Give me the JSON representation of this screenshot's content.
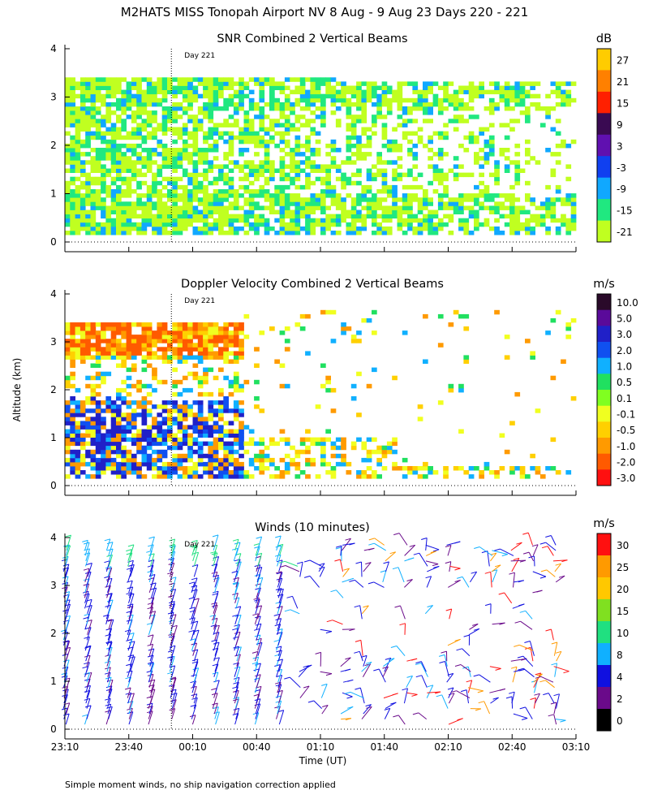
{
  "figure": {
    "title": "M2HATS MISS Tonopah Airport NV   8 Aug -  9 Aug 23 Days 220 - 221",
    "ylabel": "Altitude (km)",
    "xlabel": "Time (UT)",
    "footnote": "Simple moment winds, no ship navigation correction applied",
    "day_marker": "Day 221",
    "x_ticks": [
      "23:10",
      "23:40",
      "00:10",
      "00:40",
      "01:10",
      "01:40",
      "02:10",
      "02:40",
      "03:10"
    ],
    "y_ticks": [
      "0",
      "1",
      "2",
      "3",
      "4"
    ]
  },
  "chart_data": [
    {
      "type": "heatmap",
      "title": "SNR Combined 2 Vertical Beams",
      "unit": "dB",
      "x_range": [
        "23:10",
        "03:10"
      ],
      "ylim": [
        0,
        4
      ],
      "colorbar_labels": [
        "27",
        "21",
        "15",
        "9",
        "3",
        "-3",
        "-9",
        "-15",
        "-21"
      ],
      "colorbar_colors": [
        "#ffcc00",
        "#ff8000",
        "#ff2000",
        "#3a0a52",
        "#6010b0",
        "#1040f0",
        "#10a8ff",
        "#20e880",
        "#c0ff20"
      ],
      "day_marker_time": "00:00"
    },
    {
      "type": "heatmap",
      "title": "Doppler Velocity Combined 2 Vertical Beams",
      "unit": "m/s",
      "x_range": [
        "23:10",
        "03:10"
      ],
      "ylim": [
        0,
        4
      ],
      "colorbar_labels": [
        "10.0",
        "5.0",
        "3.0",
        "2.0",
        "1.0",
        "0.5",
        "0.1",
        "-0.1",
        "-0.5",
        "-1.0",
        "-2.0",
        "-3.0"
      ],
      "colorbar_colors": [
        "#2a0a2a",
        "#5a0a9a",
        "#2020c8",
        "#1050f0",
        "#10b0ff",
        "#20e060",
        "#80ff20",
        "#f0ff20",
        "#ffd000",
        "#ff9a00",
        "#ff5a00",
        "#ff1010"
      ],
      "day_marker_time": "00:00"
    },
    {
      "type": "scatter",
      "title": "Winds (10 minutes)",
      "unit": "m/s",
      "x_range": [
        "23:10",
        "03:10"
      ],
      "ylim": [
        0,
        4
      ],
      "colorbar_labels": [
        "30",
        "25",
        "20",
        "15",
        "10",
        "8",
        "4",
        "2",
        "0"
      ],
      "colorbar_colors": [
        "#ff1010",
        "#ff9a00",
        "#ffc800",
        "#80e020",
        "#20e080",
        "#10b0ff",
        "#1010e0",
        "#6a0a8a",
        "#000000"
      ],
      "day_marker_time": "00:00"
    }
  ]
}
